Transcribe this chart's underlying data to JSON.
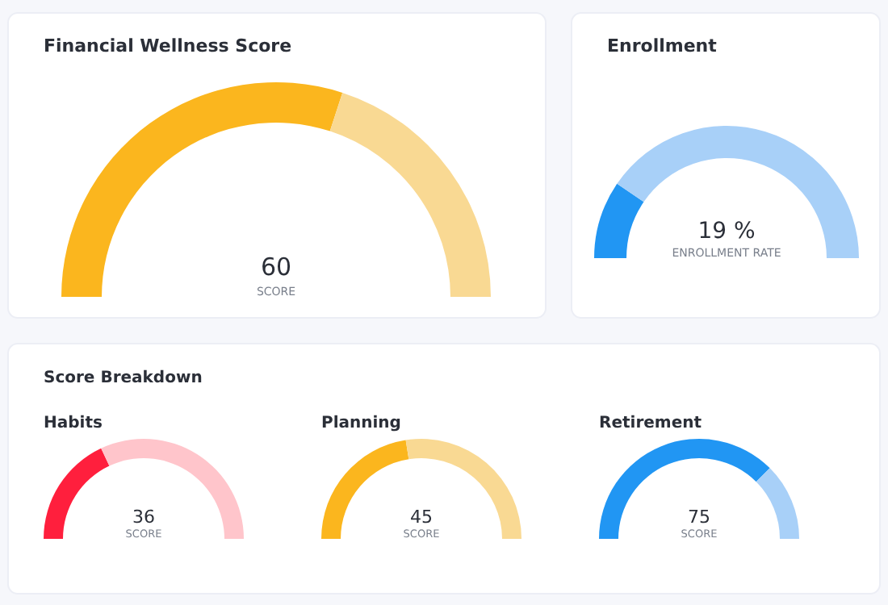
{
  "chart_data": [
    {
      "type": "donut",
      "title": "Financial Wellness Score",
      "categories": [
        null,
        null
      ],
      "values": [
        60,
        40
      ],
      "colors": [
        "#fbb61e",
        "#f9d993"
      ],
      "annotations": [
        "60",
        "SCORE"
      ]
    },
    {
      "type": "donut",
      "title": "Enrollment",
      "categories": [
        null,
        null
      ],
      "values": [
        19,
        81
      ],
      "colors": [
        "#2196f3",
        "#a8d0f8"
      ],
      "annotations": [
        "19 %",
        "ENROLLMENT RATE"
      ]
    },
    {
      "type": "other",
      "title": "Score Breakdown"
    },
    {
      "type": "donut",
      "title": "Habits",
      "categories": [
        null,
        null
      ],
      "values": [
        36,
        64
      ],
      "colors": [
        "#ff1f3d",
        "#ffc5cb"
      ],
      "annotations": [
        "36",
        "SCORE"
      ]
    },
    {
      "type": "donut",
      "title": "Planning",
      "categories": [
        null,
        null
      ],
      "values": [
        45,
        55
      ],
      "colors": [
        "#fbb61e",
        "#f9d993"
      ],
      "annotations": [
        "45",
        "SCORE"
      ]
    },
    {
      "type": "donut",
      "title": "Retirement",
      "categories": [
        null,
        null
      ],
      "values": [
        75,
        25
      ],
      "colors": [
        "#2196f3",
        "#a8d0f8"
      ],
      "annotations": [
        "75",
        "SCORE"
      ]
    }
  ]
}
